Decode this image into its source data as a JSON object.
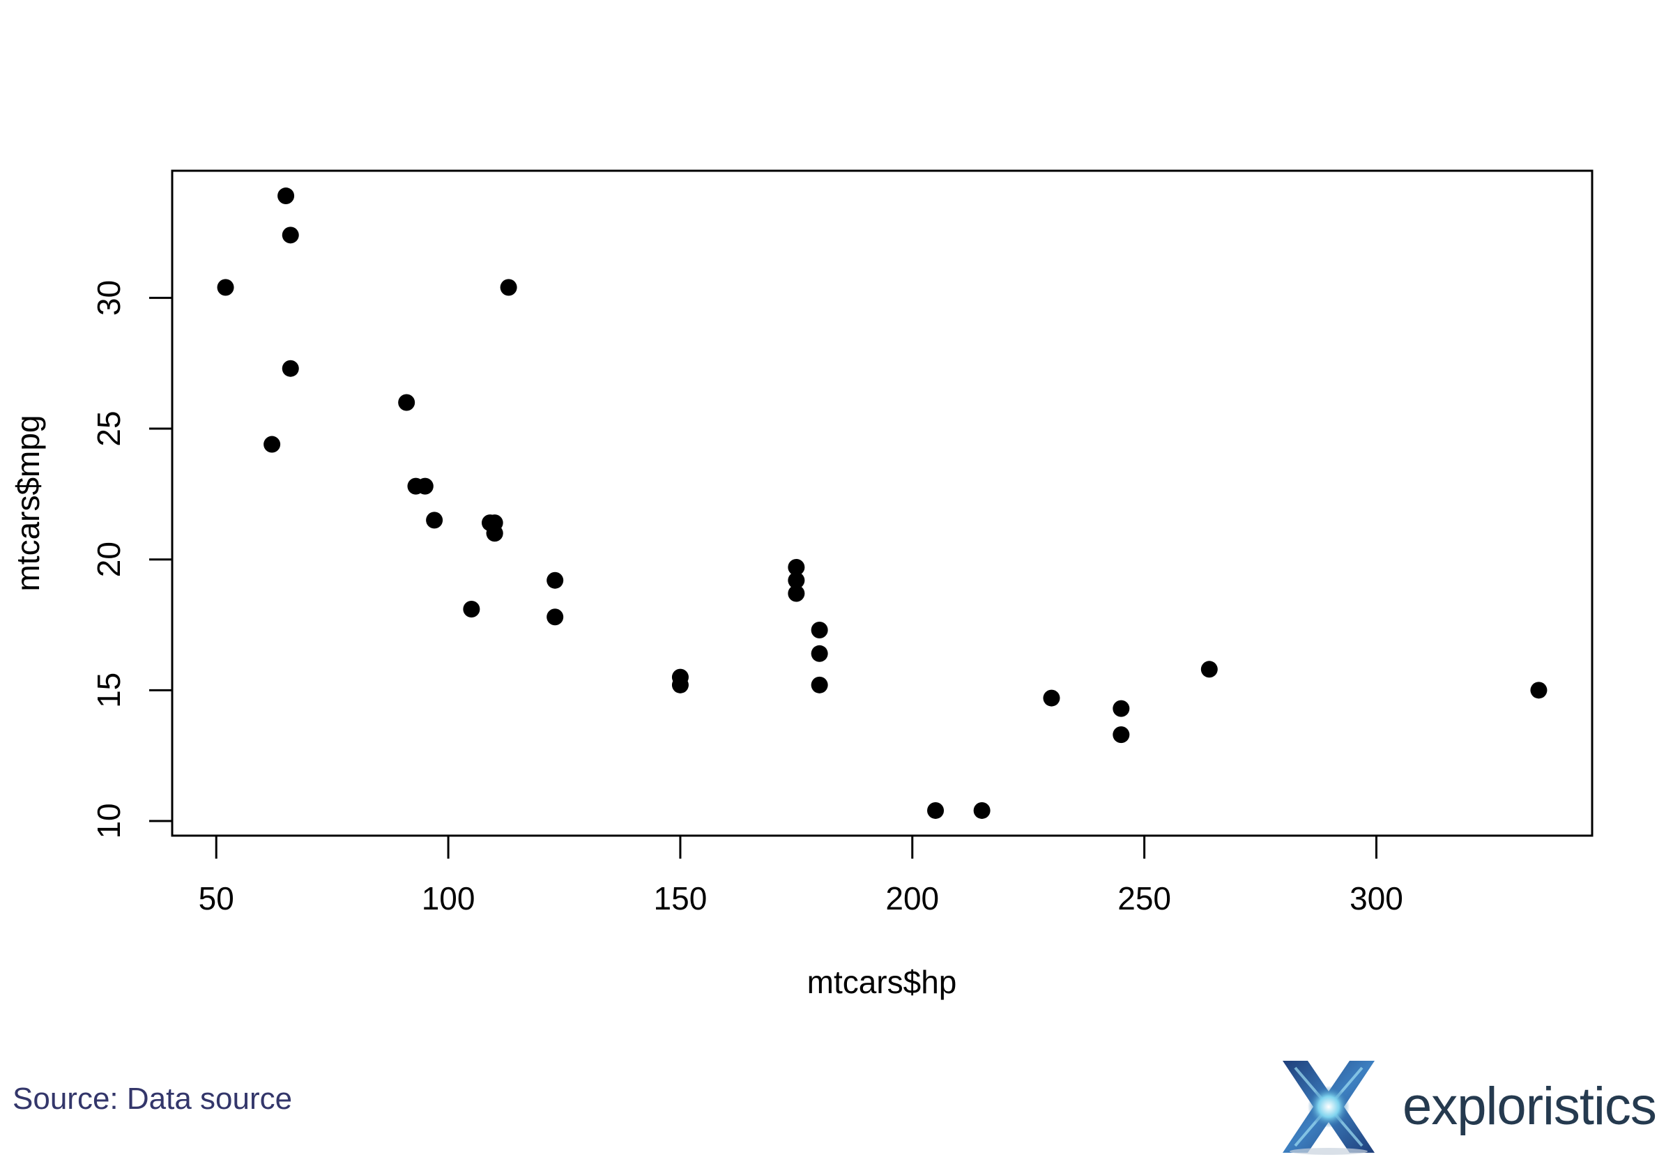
{
  "chart_data": {
    "type": "scatter",
    "title": "",
    "xlabel": "mtcars$hp",
    "ylabel": "mtcars$mpg",
    "xlim": [
      40.5,
      346.5
    ],
    "ylim": [
      9.44,
      34.86
    ],
    "xticks": [
      50,
      100,
      150,
      200,
      250,
      300
    ],
    "yticks": [
      10,
      15,
      20,
      25,
      30
    ],
    "grid": false,
    "points": [
      {
        "x": 110,
        "y": 21.0
      },
      {
        "x": 110,
        "y": 21.0
      },
      {
        "x": 93,
        "y": 22.8
      },
      {
        "x": 110,
        "y": 21.4
      },
      {
        "x": 175,
        "y": 18.7
      },
      {
        "x": 105,
        "y": 18.1
      },
      {
        "x": 245,
        "y": 14.3
      },
      {
        "x": 62,
        "y": 24.4
      },
      {
        "x": 95,
        "y": 22.8
      },
      {
        "x": 123,
        "y": 19.2
      },
      {
        "x": 123,
        "y": 17.8
      },
      {
        "x": 180,
        "y": 16.4
      },
      {
        "x": 180,
        "y": 17.3
      },
      {
        "x": 180,
        "y": 15.2
      },
      {
        "x": 205,
        "y": 10.4
      },
      {
        "x": 215,
        "y": 10.4
      },
      {
        "x": 230,
        "y": 14.7
      },
      {
        "x": 66,
        "y": 32.4
      },
      {
        "x": 52,
        "y": 30.4
      },
      {
        "x": 65,
        "y": 33.9
      },
      {
        "x": 97,
        "y": 21.5
      },
      {
        "x": 150,
        "y": 15.5
      },
      {
        "x": 150,
        "y": 15.2
      },
      {
        "x": 245,
        "y": 13.3
      },
      {
        "x": 175,
        "y": 19.2
      },
      {
        "x": 66,
        "y": 27.3
      },
      {
        "x": 91,
        "y": 26.0
      },
      {
        "x": 113,
        "y": 30.4
      },
      {
        "x": 264,
        "y": 15.8
      },
      {
        "x": 175,
        "y": 19.7
      },
      {
        "x": 335,
        "y": 15.0
      },
      {
        "x": 109,
        "y": 21.4
      }
    ]
  },
  "footer": {
    "source": "Source: Data source",
    "brand": "exploristics"
  },
  "colors": {
    "points": "#000000",
    "source_text": "#33366a",
    "brand_text": "#253a4f",
    "logo_dark": "#1f3f7a",
    "logo_light": "#7fd3ee"
  }
}
